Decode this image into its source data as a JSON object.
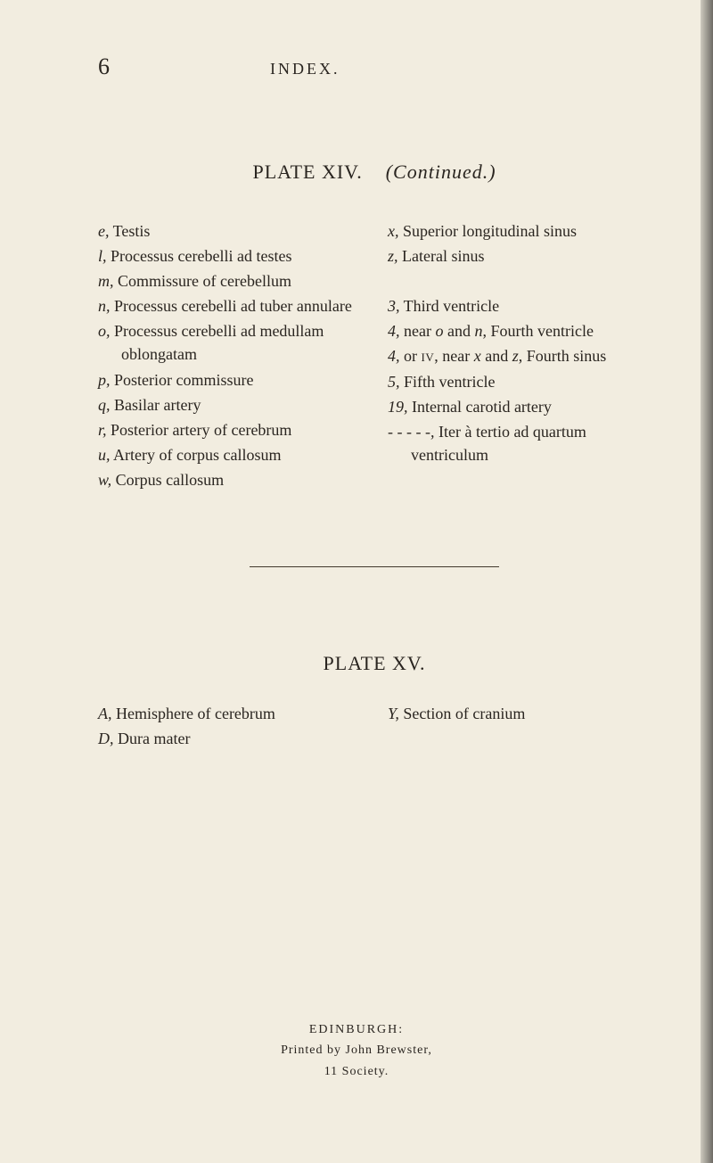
{
  "page_number": "6",
  "header_label": "INDEX.",
  "plate14": {
    "title_left": "PLATE XIV.",
    "title_right": "(Continued.)",
    "left_col": [
      {
        "label": "e,",
        "text": "Testis"
      },
      {
        "label": "l,",
        "text": "Processus cerebelli ad testes"
      },
      {
        "label": "m,",
        "text": "Commissure of cerebellum"
      },
      {
        "label": "n,",
        "text": "Processus cerebelli ad tuber annulare"
      },
      {
        "label": "o,",
        "text": "Processus cerebelli ad medullam oblongatam"
      },
      {
        "label": "p,",
        "text": "Posterior commissure"
      },
      {
        "label": "q,",
        "text": "Basilar artery"
      },
      {
        "label": "r,",
        "text": "Posterior artery of cerebrum"
      },
      {
        "label": "u,",
        "text": "Artery of corpus callosum"
      },
      {
        "label": "w,",
        "text": "Corpus callosum"
      }
    ],
    "right_col": [
      {
        "label": "x,",
        "text": "Superior longitudinal sinus"
      },
      {
        "label": "z,",
        "text": "Lateral sinus"
      },
      {
        "label": "",
        "text": ""
      },
      {
        "label": "3,",
        "text": "Third ventricle"
      },
      {
        "label": "4,",
        "html": "near <span class='i'>o</span> and <span class='i'>n</span>, Fourth ventricle"
      },
      {
        "label": "4,",
        "html": "or <span class='sc'>iv</span>, near <span class='i'>x</span> and <span class='i'>z</span>, Fourth sinus"
      },
      {
        "label": "5,",
        "text": "Fifth ventricle"
      },
      {
        "label": "19,",
        "text": "Internal carotid artery"
      },
      {
        "label": "- - - - -,",
        "text": "Iter à tertio ad quartum ventriculum"
      }
    ]
  },
  "plate15": {
    "title": "PLATE XV.",
    "left_col": [
      {
        "label": "A,",
        "text": "Hemisphere of cerebrum"
      },
      {
        "label": "D,",
        "text": "Dura mater"
      }
    ],
    "right_col": [
      {
        "label": "Y,",
        "text": "Section of cranium"
      }
    ]
  },
  "footer": {
    "city": "EDINBURGH:",
    "printer": "Printed by John Brewster,",
    "address": "11 Society."
  }
}
